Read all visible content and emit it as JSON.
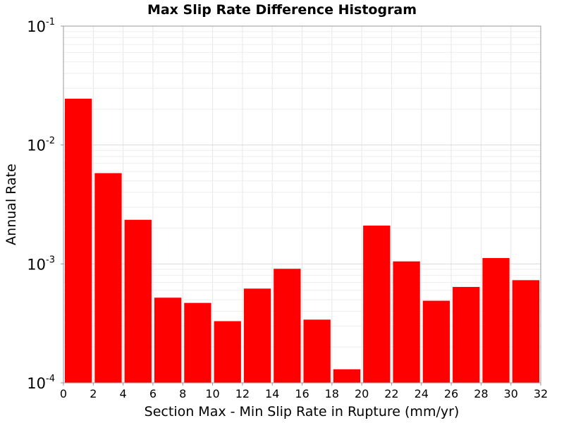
{
  "chart_data": {
    "type": "bar",
    "title": "Max Slip Rate Difference Histogram",
    "xlabel": "Section Max - Min Slip Rate in Rupture (mm/yr)",
    "ylabel": "Annual Rate",
    "xlim": [
      0,
      32
    ],
    "ylim": [
      0.0001,
      0.1
    ],
    "yscale": "log",
    "bin_width": 2,
    "grid": true,
    "bar_color": "#ff0000",
    "x_ticks": [
      "0",
      "2",
      "4",
      "6",
      "8",
      "10",
      "12",
      "14",
      "16",
      "18",
      "20",
      "22",
      "24",
      "26",
      "28",
      "30",
      "32"
    ],
    "y_ticks": [
      {
        "base": "10",
        "exp": "-4"
      },
      {
        "base": "10",
        "exp": "-3"
      },
      {
        "base": "10",
        "exp": "-2"
      },
      {
        "base": "10",
        "exp": "-1"
      }
    ],
    "bins": [
      {
        "x": 1,
        "value": 0.0245
      },
      {
        "x": 3,
        "value": 0.0058
      },
      {
        "x": 5,
        "value": 0.00235
      },
      {
        "x": 7,
        "value": 0.00052
      },
      {
        "x": 9,
        "value": 0.00047
      },
      {
        "x": 11,
        "value": 0.00033
      },
      {
        "x": 13,
        "value": 0.00062
      },
      {
        "x": 15,
        "value": 0.00091
      },
      {
        "x": 17,
        "value": 0.00034
      },
      {
        "x": 19,
        "value": 0.00013
      },
      {
        "x": 21,
        "value": 0.0021
      },
      {
        "x": 23,
        "value": 0.00105
      },
      {
        "x": 25,
        "value": 0.00049
      },
      {
        "x": 27,
        "value": 0.00064
      },
      {
        "x": 29,
        "value": 0.00112
      },
      {
        "x": 31,
        "value": 0.00073
      }
    ]
  }
}
